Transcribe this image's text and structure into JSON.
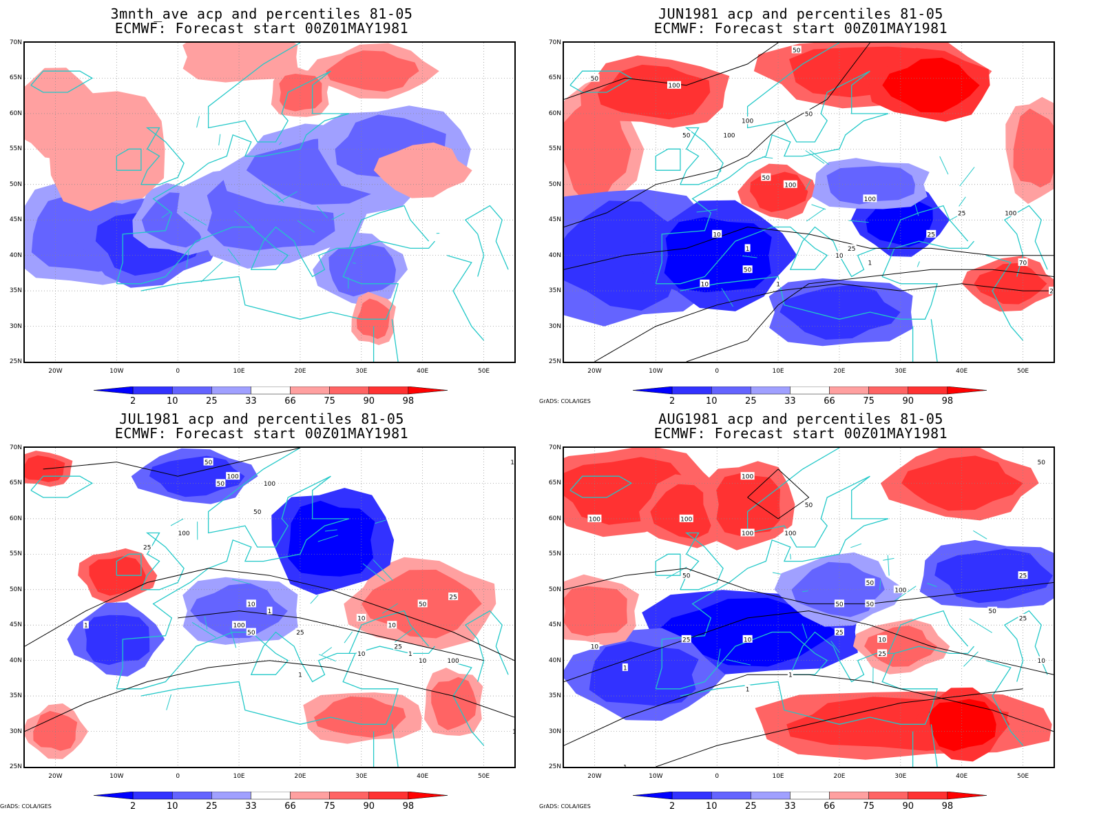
{
  "legend": {
    "levels": [
      "2",
      "10",
      "25",
      "33",
      "66",
      "75",
      "90",
      "98"
    ],
    "colors": [
      "#0000ff",
      "#3232ff",
      "#6464ff",
      "#a0a0ff",
      "#ffffff",
      "#ffa0a0",
      "#ff6464",
      "#ff3232",
      "#ff0000"
    ]
  },
  "axes": {
    "y_ticks": [
      "70N",
      "65N",
      "60N",
      "55N",
      "50N",
      "45N",
      "40N",
      "35N",
      "30N",
      "25N"
    ],
    "x_ticks": [
      "20W",
      "10W",
      "0",
      "10E",
      "20E",
      "30E",
      "40E",
      "50E"
    ],
    "lon_range": [
      -25,
      55
    ],
    "lat_range": [
      25,
      70
    ]
  },
  "credit": "GrADS: COLA/IGES",
  "panels": [
    {
      "title_line1": "3mnth_ave acp and percentiles 81-05",
      "title_line2": "ECMWF: Forecast start 00Z01MAY1981",
      "show_credit": false,
      "contours": [],
      "blobs": []
    },
    {
      "title_line1": "JUN1981 acp and percentiles 81-05",
      "title_line2": "ECMWF: Forecast start 00Z01MAY1981",
      "show_credit": true,
      "contours": [
        "50",
        "100",
        "50",
        "100",
        "50",
        "100",
        "50",
        "100",
        "100",
        "50",
        "25",
        "10",
        "1",
        "10",
        "25",
        "1",
        "50",
        "10",
        "1",
        "25",
        "100",
        "70",
        "25"
      ],
      "blobs": []
    },
    {
      "title_line1": "JUL1981 acp and percentiles 81-05",
      "title_line2": "ECMWF: Forecast start 00Z01MAY1981",
      "show_credit": true,
      "contours": [
        "50",
        "100",
        "100",
        "50",
        "50",
        "100",
        "25",
        "10",
        "1",
        "1",
        "100",
        "50",
        "25",
        "10",
        "10",
        "25",
        "1",
        "10",
        "10",
        "100",
        "50",
        "25",
        "10",
        "1",
        "1"
      ],
      "blobs": []
    },
    {
      "title_line1": "AUG1981 acp and percentiles 81-05",
      "title_line2": "ECMWF: Forecast start 00Z01MAY1981",
      "show_credit": true,
      "contours": [
        "100",
        "100",
        "100",
        "100",
        "100",
        "50",
        "50",
        "50",
        "100",
        "50",
        "10",
        "1",
        "25",
        "10",
        "25",
        "50",
        "25",
        "10",
        "1",
        "50",
        "25",
        "25",
        "10",
        "1",
        "1",
        "50"
      ],
      "blobs": []
    }
  ]
}
